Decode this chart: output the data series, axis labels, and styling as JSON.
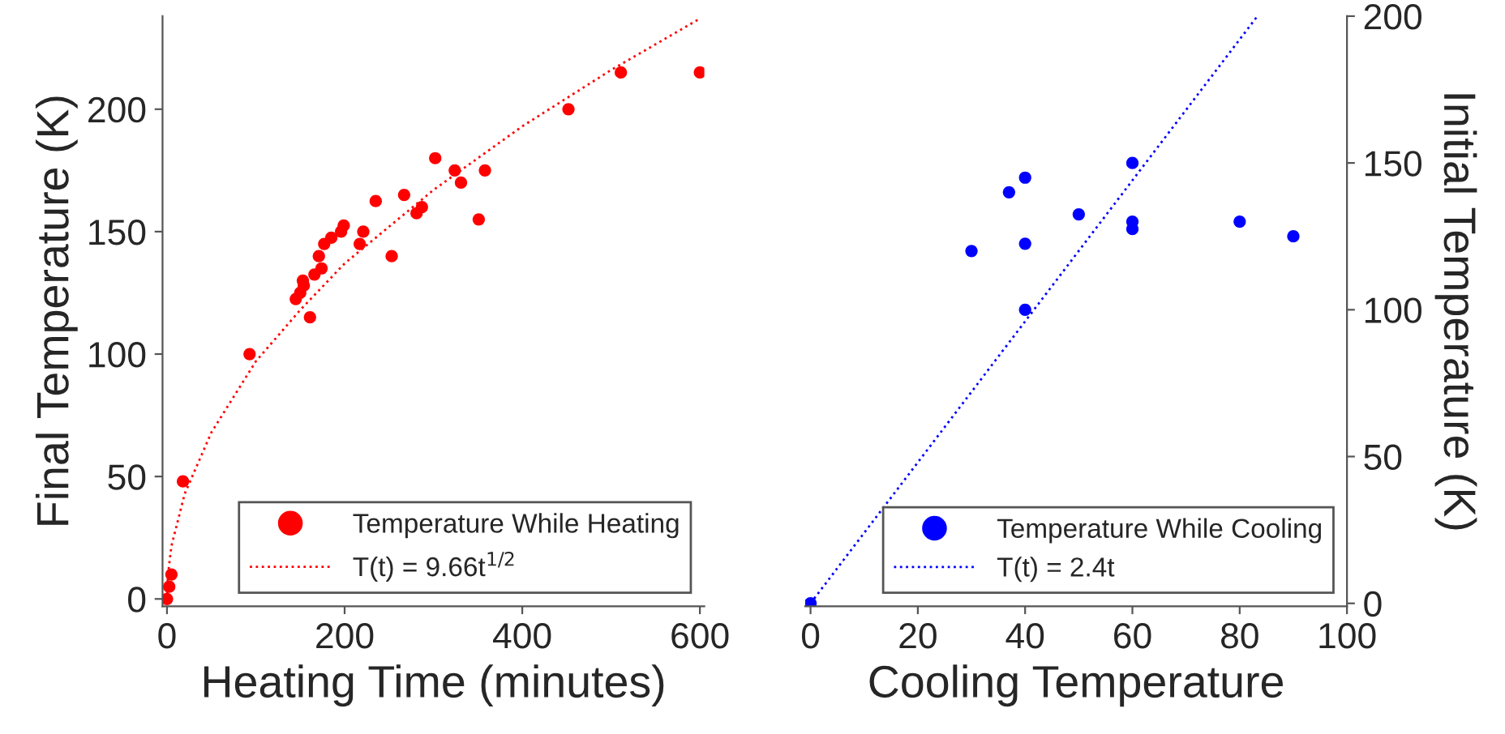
{
  "chart_data": [
    {
      "type": "scatter",
      "xlabel": "Heating Time (minutes)",
      "ylabel": "Final Temperature (K)",
      "xlim": [
        -5,
        605
      ],
      "ylim": [
        -3,
        238
      ],
      "xticks": [
        0,
        200,
        400,
        600
      ],
      "yticks": [
        0,
        50,
        100,
        150,
        200
      ],
      "grid": false,
      "legend": "bottom right",
      "marker": "circle",
      "series": [
        {
          "name": "Temperature While Heating",
          "color": "#ff0000",
          "x": [
            0,
            2.5,
            5,
            18,
            93,
            145,
            150,
            153,
            154,
            161,
            166,
            171,
            174,
            177,
            185,
            196,
            199,
            217,
            221,
            235,
            253,
            267,
            281,
            287,
            302,
            324,
            331,
            351,
            358,
            452,
            511,
            600
          ],
          "values": [
            0,
            5,
            10,
            48,
            100,
            122.5,
            125,
            130,
            128,
            115,
            132.5,
            140,
            135,
            145,
            147.5,
            150,
            152.5,
            145,
            150,
            162.5,
            140,
            165,
            157.5,
            160,
            180,
            175,
            170,
            155,
            175,
            200,
            215,
            215
          ]
        },
        {
          "name": "T(t) = 9.66t$^{1/2}$",
          "color": "#ff0000",
          "type": "line",
          "line_style": "dotted",
          "marker": "none",
          "x": [
            0,
            1,
            5,
            20,
            50,
            100,
            150,
            200,
            300,
            400,
            500,
            600
          ],
          "values": [
            0,
            9.7,
            21.6,
            43,
            68,
            97,
            118,
            137,
            167,
            193,
            216,
            237
          ]
        }
      ]
    },
    {
      "type": "scatter",
      "xlabel": "Cooling Temperature",
      "y2label": "Initial Temperature (K)",
      "xlim": [
        -1,
        100
      ],
      "y2lim": [
        -1,
        200
      ],
      "xticks": [
        0,
        20,
        40,
        60,
        80,
        100
      ],
      "y2ticks": [
        0,
        50,
        100,
        150,
        200
      ],
      "grid": false,
      "legend": "bottom right",
      "marker": "circle",
      "series": [
        {
          "name": "Temperature While Cooling",
          "color": "#0000ff",
          "axis": "y2",
          "x": [
            0,
            30,
            37,
            40,
            40,
            40,
            50,
            60,
            60,
            60,
            80,
            90
          ],
          "values": [
            0,
            120,
            140,
            145,
            122.5,
            100,
            132.5,
            150,
            130,
            127.5,
            130,
            125
          ]
        },
        {
          "name": "T(t) = 2.4t",
          "color": "#0000ff",
          "type": "line",
          "axis": "y2",
          "line_style": "dotted",
          "marker": "none",
          "x": [
            0,
            83.3
          ],
          "values": [
            0,
            200
          ]
        }
      ]
    }
  ]
}
